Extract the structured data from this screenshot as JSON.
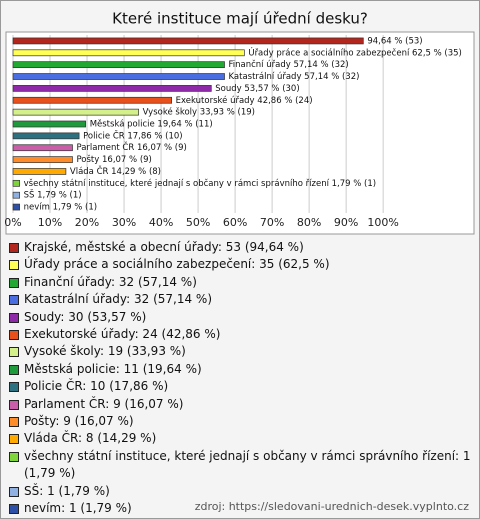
{
  "chart_data": {
    "type": "bar",
    "orientation": "horizontal",
    "title": "Které instituce mají úřední desku?",
    "categories": [
      "Krajské, městské a obecní úřady",
      "Úřady práce a sociálního zabezpečení",
      "Finanční úřady",
      "Katastrální úřady",
      "Soudy",
      "Exekutorské úřady",
      "Vysoké školy",
      "Městská policie",
      "Policie ČR",
      "Parlament ČR",
      "Pošty",
      "Vláda ČR",
      "všechny státní instituce, které jednají s občany v rámci správního řízení",
      "SŠ",
      "nevím"
    ],
    "values": [
      94.64,
      62.5,
      57.14,
      57.14,
      53.57,
      42.86,
      33.93,
      19.64,
      17.86,
      16.07,
      16.07,
      14.29,
      1.79,
      1.79,
      1.79
    ],
    "value_labels": [
      "94,64 % (53)",
      "Úřady práce a sociálního zabezpečení 62,5 % (35)",
      "Finanční úřady 57,14 % (32)",
      "Katastrální úřady 57,14 % (32)",
      "Soudy 53,57 % (30)",
      "Exekutorské úřady 42,86 % (24)",
      "Vysoké školy 33,93 % (19)",
      "Městská policie 19,64 % (11)",
      "Policie ČR 17,86 % (10)",
      "Parlament ČR 16,07 % (9)",
      "Pošty 16,07 % (9)",
      "Vláda ČR 14,29 % (8)",
      "všechny státní instituce, které jednají s občany v rámci správního řízení 1,79 % (1)",
      "SŠ 1,79 % (1)",
      "nevím 1,79 % (1)"
    ],
    "colors": [
      "#b3261e",
      "#ffff55",
      "#22a833",
      "#4a6ee0",
      "#8e2aa8",
      "#e8501c",
      "#d4f08a",
      "#1e9a3c",
      "#2d7080",
      "#c85fa8",
      "#ff8c2a",
      "#ffaa00",
      "#7ed43a",
      "#8fb0e0",
      "#2e4fa8"
    ],
    "legend_labels": [
      "Krajské, městské a obecní úřady: 53 (94,64 %)",
      "Úřady práce a sociálního zabezpečení: 35 (62,5 %)",
      "Finanční úřady: 32 (57,14 %)",
      "Katastrální úřady: 32 (57,14 %)",
      "Soudy: 30 (53,57 %)",
      "Exekutorské úřady: 24 (42,86 %)",
      "Vysoké školy: 19 (33,93 %)",
      "Městská policie: 11 (19,64 %)",
      "Policie ČR: 10 (17,86 %)",
      "Parlament ČR: 9 (16,07 %)",
      "Pošty: 9 (16,07 %)",
      "Vláda ČR: 8 (14,29 %)",
      "všechny státní instituce, které jednají s občany v rámci správního řízení: 1 (1,79 %)",
      "SŠ: 1 (1,79 %)",
      "nevím: 1 (1,79 %)"
    ],
    "xlim": [
      0,
      124
    ],
    "xticks": [
      {
        "value": 0,
        "label": "0%"
      },
      {
        "value": 10,
        "label": "10%"
      },
      {
        "value": 20,
        "label": "20%"
      },
      {
        "value": 30,
        "label": "30%"
      },
      {
        "value": 40,
        "label": "40%"
      },
      {
        "value": 50,
        "label": "50%"
      },
      {
        "value": 60,
        "label": "60%"
      },
      {
        "value": 70,
        "label": "70%"
      },
      {
        "value": 80,
        "label": "80%"
      },
      {
        "value": 90,
        "label": "90%"
      },
      {
        "value": 100,
        "label": "100%"
      }
    ],
    "grid": true,
    "source": "zdroj: https://sledovani-urednich-desek.vyplnto.cz"
  }
}
